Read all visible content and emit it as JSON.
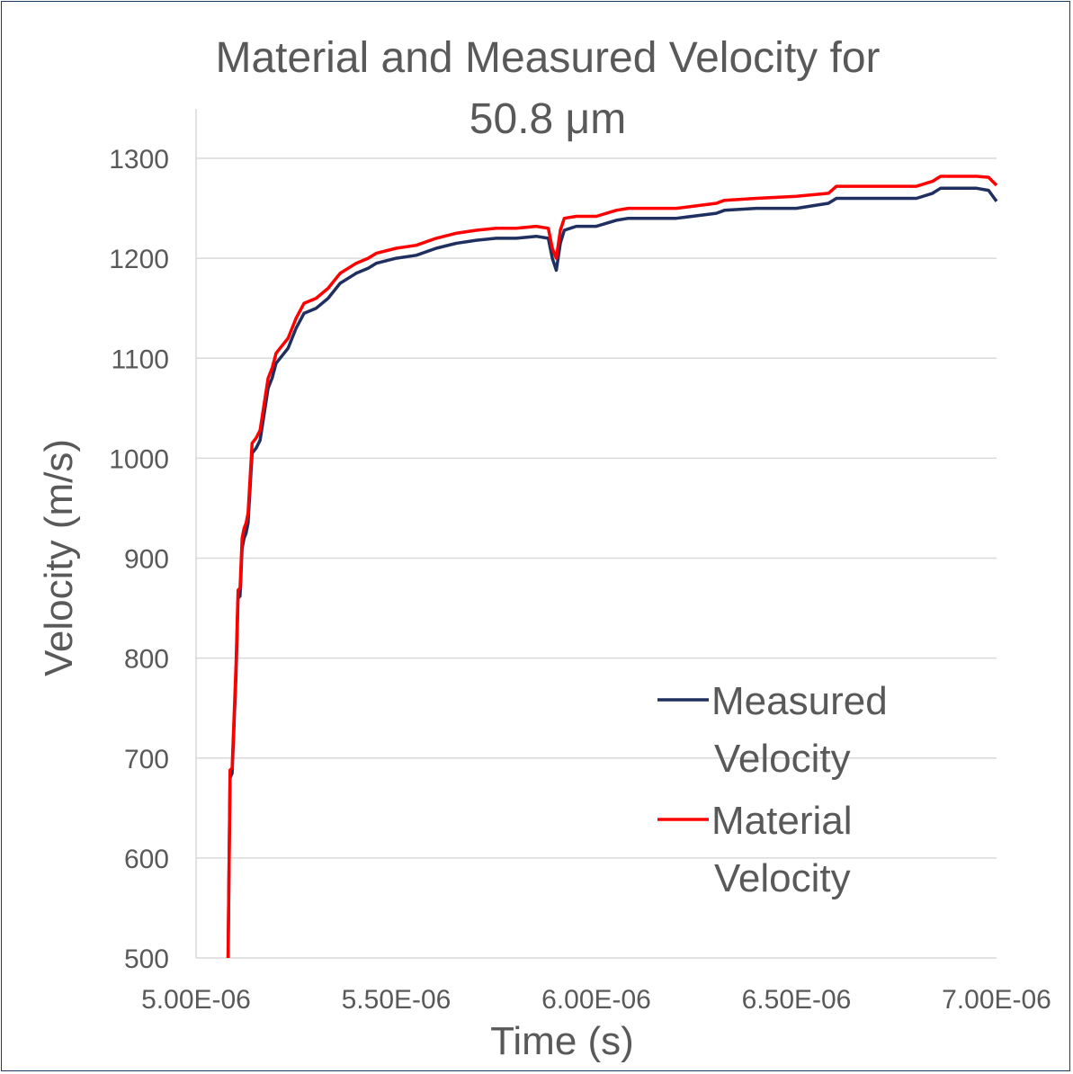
{
  "chart_data": {
    "type": "line",
    "title_lines": [
      "Material and Measured Velocity for",
      "50.8 μm"
    ],
    "xlabel": "Time (s)",
    "ylabel": "Velocity (m/s)",
    "xlim": [
      5e-06,
      7e-06
    ],
    "ylim": [
      500,
      1300
    ],
    "x_tick_labels": [
      "5.00E-06",
      "5.50E-06",
      "6.00E-06",
      "6.50E-06",
      "7.00E-06"
    ],
    "x_ticks": [
      5e-06,
      5.5e-06,
      6e-06,
      6.5e-06,
      7e-06
    ],
    "y_ticks": [
      500,
      600,
      700,
      800,
      900,
      1000,
      1100,
      1200,
      1300
    ],
    "y_tick_labels": [
      "500",
      "600",
      "700",
      "800",
      "900",
      "1000",
      "1100",
      "1200",
      "1300"
    ],
    "grid": "horizontal",
    "legend_position": "bottom-right",
    "series": [
      {
        "name_lines": [
          "Measured",
          "Velocity"
        ],
        "color": "#1f2f5f",
        "x": [
          5.08e-06,
          5.085e-06,
          5.09e-06,
          5.1e-06,
          5.105e-06,
          5.11e-06,
          5.115e-06,
          5.12e-06,
          5.125e-06,
          5.13e-06,
          5.14e-06,
          5.15e-06,
          5.16e-06,
          5.18e-06,
          5.185e-06,
          5.19e-06,
          5.2e-06,
          5.21e-06,
          5.23e-06,
          5.25e-06,
          5.27e-06,
          5.3e-06,
          5.33e-06,
          5.36e-06,
          5.4e-06,
          5.43e-06,
          5.45e-06,
          5.5e-06,
          5.55e-06,
          5.6e-06,
          5.65e-06,
          5.7e-06,
          5.75e-06,
          5.8e-06,
          5.85e-06,
          5.88e-06,
          5.89e-06,
          5.9e-06,
          5.91e-06,
          5.92e-06,
          5.95e-06,
          6e-06,
          6.05e-06,
          6.08e-06,
          6.1e-06,
          6.2e-06,
          6.3e-06,
          6.32e-06,
          6.4e-06,
          6.5e-06,
          6.58e-06,
          6.6e-06,
          6.7e-06,
          6.8e-06,
          6.84e-06,
          6.86e-06,
          6.9e-06,
          6.95e-06,
          6.98e-06,
          7e-06
        ],
        "y": [
          500,
          680,
          685,
          785,
          860,
          862,
          910,
          920,
          925,
          935,
          1005,
          1010,
          1018,
          1070,
          1075,
          1080,
          1095,
          1100,
          1110,
          1130,
          1145,
          1150,
          1160,
          1175,
          1185,
          1190,
          1195,
          1200,
          1203,
          1210,
          1215,
          1218,
          1220,
          1220,
          1222,
          1220,
          1200,
          1188,
          1215,
          1228,
          1232,
          1232,
          1238,
          1240,
          1240,
          1240,
          1245,
          1248,
          1250,
          1250,
          1255,
          1260,
          1260,
          1260,
          1265,
          1270,
          1270,
          1270,
          1268,
          1257
        ]
      },
      {
        "name_lines": [
          "Material",
          "Velocity"
        ],
        "color": "#ff0000",
        "x": [
          5.08e-06,
          5.085e-06,
          5.09e-06,
          5.1e-06,
          5.105e-06,
          5.11e-06,
          5.115e-06,
          5.12e-06,
          5.125e-06,
          5.13e-06,
          5.14e-06,
          5.15e-06,
          5.16e-06,
          5.18e-06,
          5.185e-06,
          5.19e-06,
          5.2e-06,
          5.21e-06,
          5.23e-06,
          5.25e-06,
          5.27e-06,
          5.3e-06,
          5.33e-06,
          5.36e-06,
          5.4e-06,
          5.43e-06,
          5.45e-06,
          5.5e-06,
          5.55e-06,
          5.6e-06,
          5.65e-06,
          5.7e-06,
          5.75e-06,
          5.8e-06,
          5.85e-06,
          5.88e-06,
          5.89e-06,
          5.9e-06,
          5.91e-06,
          5.92e-06,
          5.95e-06,
          6e-06,
          6.05e-06,
          6.08e-06,
          6.1e-06,
          6.2e-06,
          6.3e-06,
          6.32e-06,
          6.4e-06,
          6.5e-06,
          6.58e-06,
          6.6e-06,
          6.7e-06,
          6.8e-06,
          6.84e-06,
          6.86e-06,
          6.9e-06,
          6.95e-06,
          6.98e-06,
          7e-06
        ],
        "y": [
          500,
          688,
          690,
          795,
          868,
          870,
          920,
          930,
          935,
          945,
          1015,
          1020,
          1028,
          1080,
          1085,
          1090,
          1105,
          1110,
          1120,
          1140,
          1155,
          1160,
          1170,
          1185,
          1195,
          1200,
          1205,
          1210,
          1213,
          1220,
          1225,
          1228,
          1230,
          1230,
          1232,
          1230,
          1210,
          1200,
          1228,
          1240,
          1242,
          1242,
          1248,
          1250,
          1250,
          1250,
          1255,
          1258,
          1260,
          1262,
          1265,
          1272,
          1272,
          1272,
          1277,
          1282,
          1282,
          1282,
          1281,
          1273
        ]
      }
    ]
  }
}
